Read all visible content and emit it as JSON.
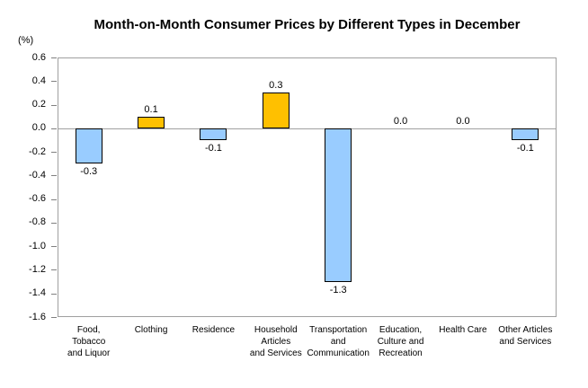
{
  "title": "Month-on-Month Consumer Prices by Different Types in December",
  "y_unit_label": "(%)",
  "chart_data": {
    "type": "bar",
    "title": "Month-on-Month Consumer Prices by Different Types in December",
    "xlabel": "",
    "ylabel": "(%)",
    "categories": [
      "Food, Tobacco and Liquor",
      "Clothing",
      "Residence",
      "Household Articles and Services",
      "Transportation and Communication",
      "Education, Culture and Recreation",
      "Health Care",
      "Other Articles and Services"
    ],
    "category_label_lines": [
      [
        "Food,",
        "Tobacco",
        "and Liquor"
      ],
      [
        "Clothing"
      ],
      [
        "Residence"
      ],
      [
        "Household",
        "Articles",
        "and Services"
      ],
      [
        "Transportation",
        "and",
        "Communication"
      ],
      [
        "Education,",
        "Culture and",
        "Recreation"
      ],
      [
        "Health Care"
      ],
      [
        "Other Articles",
        "and Services"
      ]
    ],
    "values": [
      -0.3,
      0.1,
      -0.1,
      0.3,
      -1.3,
      0.0,
      0.0,
      -0.1
    ],
    "data_labels": [
      "-0.3",
      "0.1",
      "-0.1",
      "0.3",
      "-1.3",
      "0.0",
      "0.0",
      "-0.1"
    ],
    "ylim": [
      -1.6,
      0.6
    ],
    "ytick_step": 0.2,
    "ytick_labels": [
      "0.6",
      "0.4",
      "0.2",
      "0.0",
      "-0.2",
      "-0.4",
      "-0.6",
      "-0.8",
      "-1.0",
      "-1.2",
      "-1.4",
      "-1.6"
    ],
    "grid": false,
    "legend": "none",
    "colors": {
      "positive_bar": "#FFC000",
      "negative_bar": "#99CCFF",
      "bar_border": "#000000",
      "axis_line": "#A0A0A0",
      "tick_mark": "#808080",
      "text": "#000000",
      "background": "#FFFFFF"
    }
  }
}
